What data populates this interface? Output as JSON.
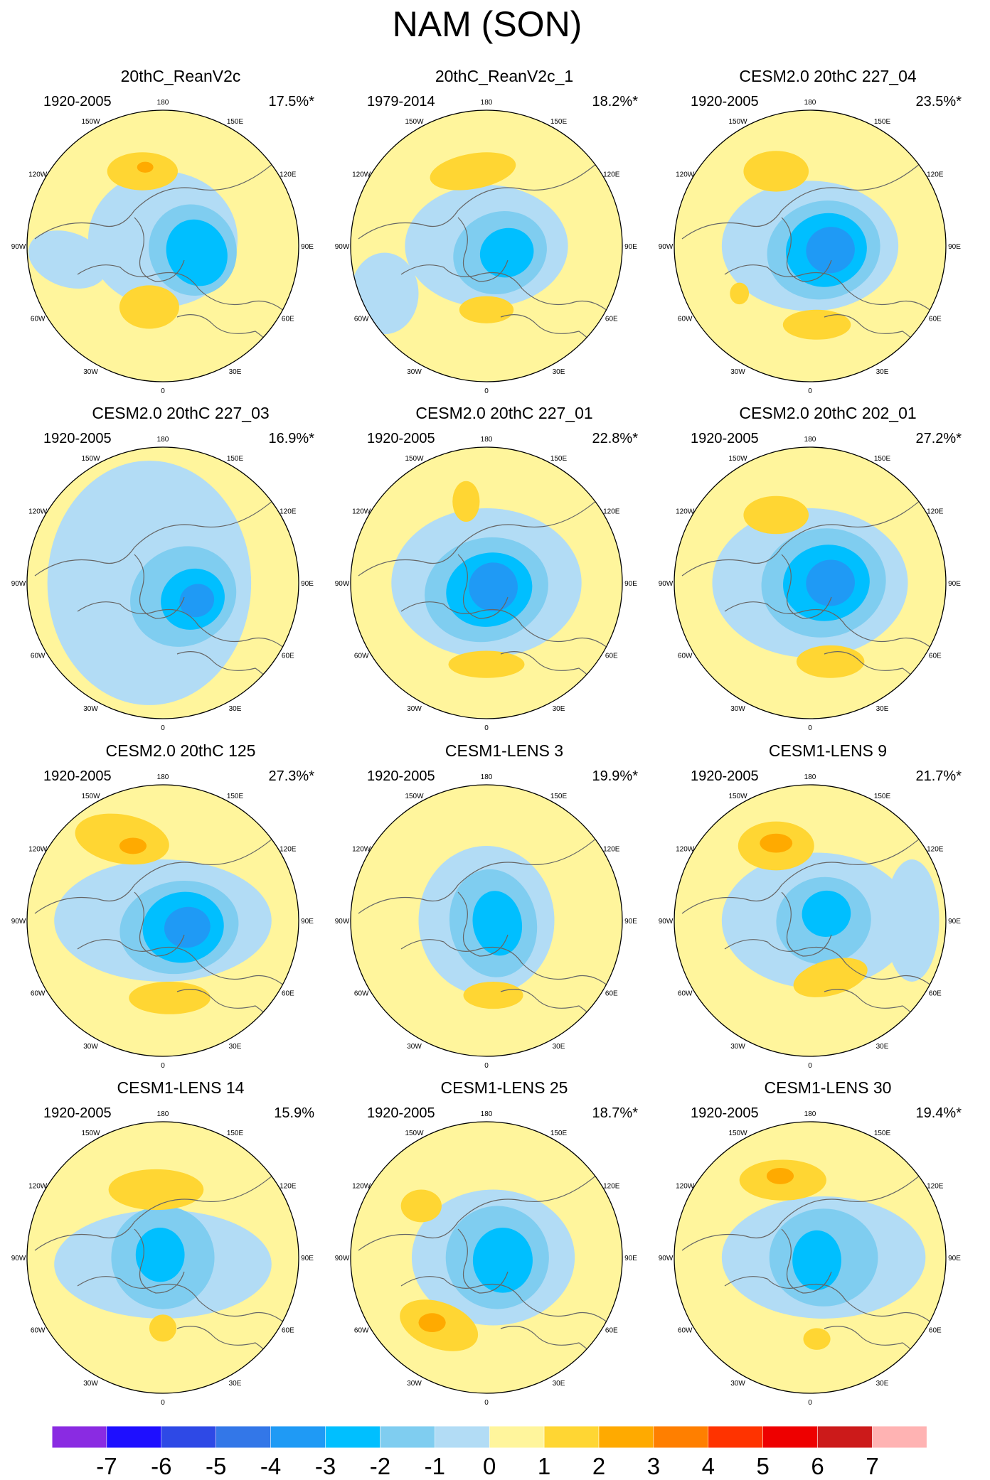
{
  "title": "NAM (SON)",
  "chart_data": {
    "type": "map-panels",
    "projection": "north polar stereographic",
    "longitude_labels": [
      "180",
      "150E",
      "120E",
      "90E",
      "60E",
      "30E",
      "0",
      "30W",
      "60W",
      "90W",
      "120W",
      "150W"
    ],
    "colorbar": {
      "labels": [
        "-7",
        "-6",
        "-5",
        "-4",
        "-3",
        "-2",
        "-1",
        "0",
        "1",
        "2",
        "3",
        "4",
        "5",
        "6",
        "7"
      ],
      "colors": [
        "#8a2be2",
        "#1e0fff",
        "#2e49e6",
        "#3377e8",
        "#1f9af5",
        "#00bfff",
        "#7fcdf0",
        "#b2dcf5",
        "#fff59c",
        "#ffd633",
        "#ffaa00",
        "#ff7f00",
        "#ff3300",
        "#ee0000",
        "#cc1a1a",
        "#ffb3b3"
      ]
    },
    "panels": [
      {
        "title": "20thC_ReanV2c",
        "period": "1920-2005",
        "variance": "17.5%*"
      },
      {
        "title": "20thC_ReanV2c_1",
        "period": "1979-2014",
        "variance": "18.2%*"
      },
      {
        "title": "CESM2.0 20thC 227_04",
        "period": "1920-2005",
        "variance": "23.5%*"
      },
      {
        "title": "CESM2.0 20thC 227_03",
        "period": "1920-2005",
        "variance": "16.9%*"
      },
      {
        "title": "CESM2.0 20thC 227_01",
        "period": "1920-2005",
        "variance": "22.8%*"
      },
      {
        "title": "CESM2.0 20thC 202_01",
        "period": "1920-2005",
        "variance": "27.2%*"
      },
      {
        "title": "CESM2.0 20thC 125",
        "period": "1920-2005",
        "variance": "27.3%*"
      },
      {
        "title": "CESM1-LENS 3",
        "period": "1920-2005",
        "variance": "19.9%*"
      },
      {
        "title": "CESM1-LENS 9",
        "period": "1920-2005",
        "variance": "21.7%*"
      },
      {
        "title": "CESM1-LENS 14",
        "period": "1920-2005",
        "variance": "15.9%"
      },
      {
        "title": "CESM1-LENS 25",
        "period": "1920-2005",
        "variance": "18.7%*"
      },
      {
        "title": "CESM1-LENS 30",
        "period": "1920-2005",
        "variance": "19.4%*"
      }
    ]
  }
}
